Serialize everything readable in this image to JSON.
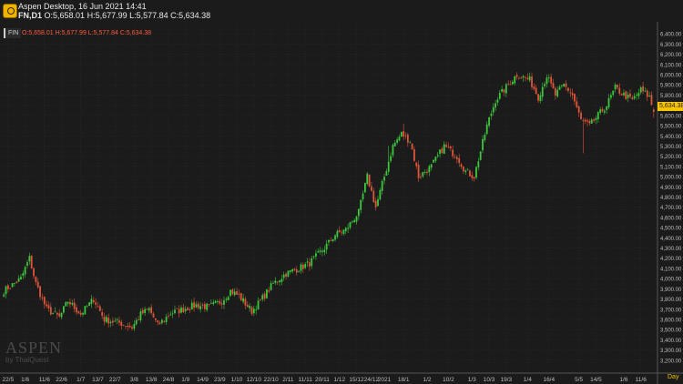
{
  "window": {
    "title": "Aspen Desktop, 16 Jun 2021 14:41",
    "symbol": "FN,D1",
    "ohlc": "O:5,658.01 H:5,677.99 L:5,577.84 C:5,634.38",
    "icon": "aspen-logo-icon"
  },
  "legend": {
    "badge": "FIN",
    "ohlc": "O:5,658.01 H:5,677.99 L:5,577.84 C:5,634.38"
  },
  "watermark": {
    "main": "ASPEN",
    "sub": "by ThaiQuest"
  },
  "last_price": "5,634.38",
  "period": "Day",
  "colors": {
    "up": "#3cc83c",
    "down": "#e0553a",
    "background": "#1b1b1b",
    "grid": "#2e2e2e",
    "accent": "#f6c400"
  },
  "chart_data": {
    "type": "candlestick",
    "ylim": [
      3100,
      6500
    ],
    "yticks": [
      "6,400.00",
      "6,300.00",
      "6,200.00",
      "6,100.00",
      "6,000.00",
      "5,900.00",
      "5,800.00",
      "5,700.00",
      "5,600.00",
      "5,500.00",
      "5,400.00",
      "5,300.00",
      "5,200.00",
      "5,100.00",
      "5,000.00",
      "4,900.00",
      "4,800.00",
      "4,700.00",
      "4,600.00",
      "4,500.00",
      "4,400.00",
      "4,300.00",
      "4,200.00",
      "4,100.00",
      "4,000.00",
      "3,900.00",
      "3,800.00",
      "3,700.00",
      "3,600.00",
      "3,500.00",
      "3,400.00",
      "3,300.00",
      "3,200.00"
    ],
    "ytick_values": [
      6400,
      6300,
      6200,
      6100,
      6000,
      5900,
      5800,
      5700,
      5600,
      5500,
      5400,
      5300,
      5200,
      5100,
      5000,
      4900,
      4800,
      4700,
      4600,
      4500,
      4400,
      4300,
      4200,
      4100,
      4000,
      3900,
      3800,
      3700,
      3600,
      3500,
      3400,
      3300,
      3200
    ],
    "xticks": [
      "22/5",
      "1/6",
      "11/6",
      "22/6",
      "1/7",
      "13/7",
      "22/7",
      "3/8",
      "13/8",
      "24/8",
      "1/9",
      "14/9",
      "23/9",
      "1/10",
      "12/10",
      "22/10",
      "2/11",
      "11/11",
      "20/11",
      "1/12",
      "15/12",
      "24/12",
      "2021",
      "18/1",
      "1/2",
      "10/2",
      "1/3",
      "10/3",
      "19/3",
      "1/4",
      "16/4",
      "5/5",
      "14/5",
      "1/6",
      "11/6"
    ],
    "xtick_bars": [
      2,
      10,
      19,
      27,
      36,
      44,
      52,
      61,
      69,
      77,
      85,
      93,
      101,
      109,
      117,
      125,
      133,
      141,
      149,
      157,
      165,
      172,
      178,
      187,
      198,
      208,
      219,
      227,
      235,
      245,
      255,
      269,
      277,
      290,
      298
    ],
    "anchors": [
      [
        0,
        3880
      ],
      [
        8,
        4000
      ],
      [
        12,
        4200
      ],
      [
        15,
        3950
      ],
      [
        20,
        3700
      ],
      [
        26,
        3620
      ],
      [
        30,
        3780
      ],
      [
        36,
        3650
      ],
      [
        42,
        3800
      ],
      [
        47,
        3600
      ],
      [
        55,
        3560
      ],
      [
        60,
        3520
      ],
      [
        64,
        3650
      ],
      [
        68,
        3700
      ],
      [
        72,
        3540
      ],
      [
        78,
        3660
      ],
      [
        84,
        3700
      ],
      [
        90,
        3740
      ],
      [
        96,
        3720
      ],
      [
        102,
        3780
      ],
      [
        106,
        3880
      ],
      [
        110,
        3830
      ],
      [
        116,
        3680
      ],
      [
        120,
        3780
      ],
      [
        126,
        3950
      ],
      [
        132,
        4050
      ],
      [
        138,
        4100
      ],
      [
        143,
        4150
      ],
      [
        150,
        4300
      ],
      [
        155,
        4430
      ],
      [
        160,
        4480
      ],
      [
        166,
        4650
      ],
      [
        170,
        5000
      ],
      [
        174,
        4700
      ],
      [
        178,
        5000
      ],
      [
        182,
        5300
      ],
      [
        186,
        5420
      ],
      [
        190,
        5350
      ],
      [
        194,
        5000
      ],
      [
        200,
        5100
      ],
      [
        206,
        5300
      ],
      [
        212,
        5200
      ],
      [
        216,
        5050
      ],
      [
        220,
        5000
      ],
      [
        226,
        5500
      ],
      [
        230,
        5750
      ],
      [
        236,
        5900
      ],
      [
        240,
        6000
      ],
      [
        246,
        5950
      ],
      [
        250,
        5780
      ],
      [
        254,
        5990
      ],
      [
        258,
        5800
      ],
      [
        262,
        5900
      ],
      [
        266,
        5800
      ],
      [
        270,
        5550
      ],
      [
        274,
        5500
      ],
      [
        278,
        5600
      ],
      [
        282,
        5700
      ],
      [
        286,
        5870
      ],
      [
        290,
        5800
      ],
      [
        294,
        5750
      ],
      [
        298,
        5850
      ],
      [
        302,
        5780
      ],
      [
        304,
        5634
      ]
    ],
    "last_ohlc": {
      "open": 5658.01,
      "high": 5677.99,
      "low": 5577.84,
      "close": 5634.38
    }
  }
}
